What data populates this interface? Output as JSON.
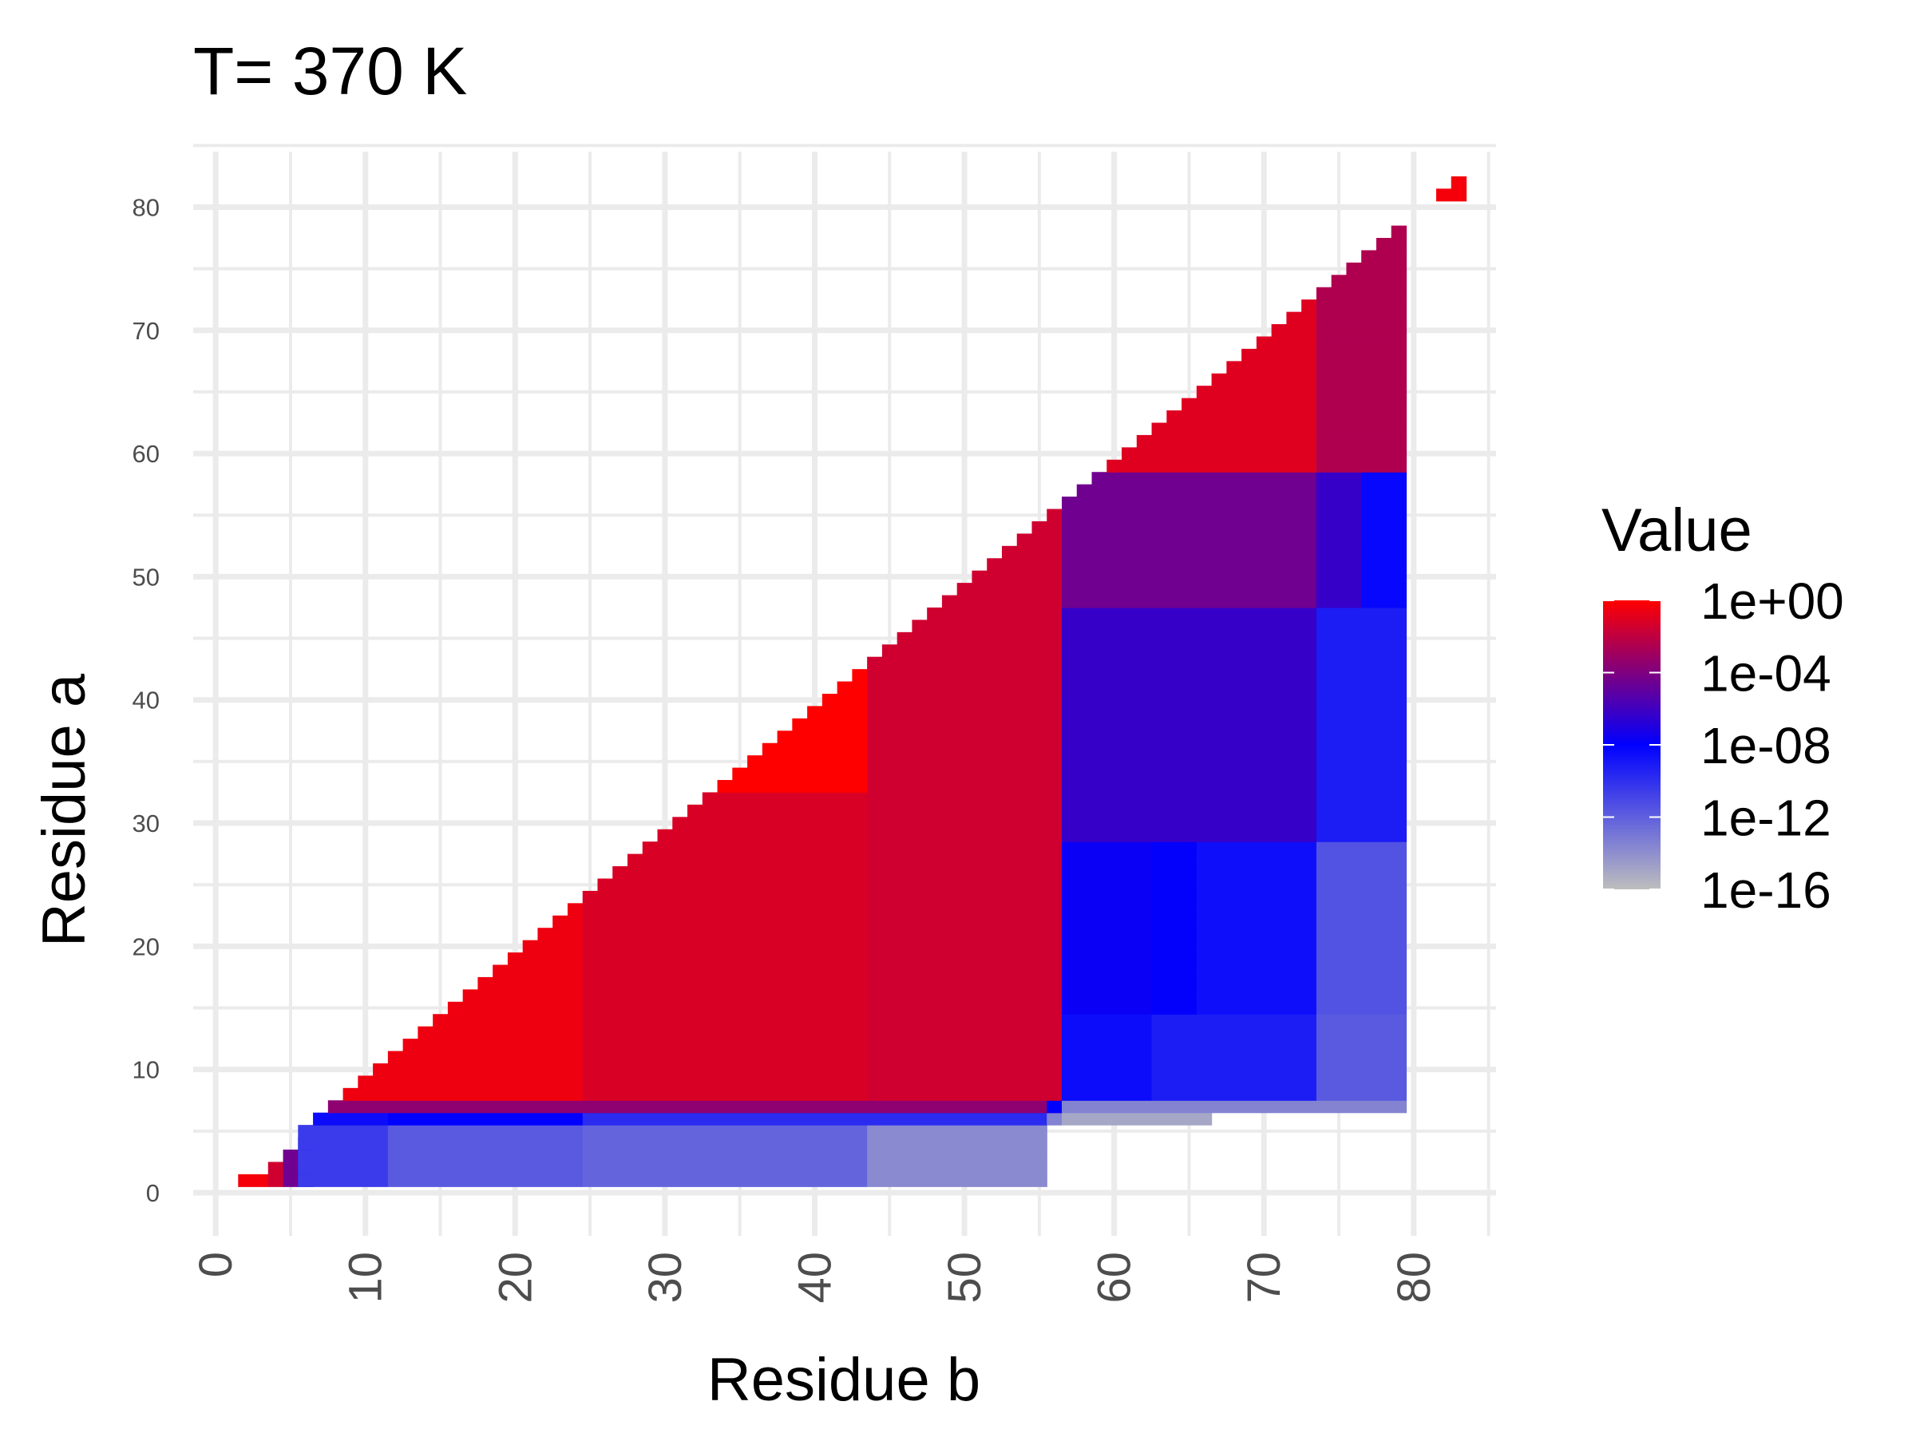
{
  "chart_data": {
    "type": "heatmap",
    "title": "T= 370 K",
    "xlabel": "Residue b",
    "ylabel": "Residue a",
    "xlim": [
      -1.5,
      85.5
    ],
    "ylim": [
      -3.5,
      84.5
    ],
    "x_ticks": [
      "0",
      "10",
      "20",
      "30",
      "40",
      "50",
      "60",
      "70",
      "80"
    ],
    "y_ticks": [
      "0",
      "10",
      "20",
      "30",
      "40",
      "50",
      "60",
      "70",
      "80"
    ],
    "grid": true,
    "legend": {
      "title": "Value",
      "position": "right",
      "scale": "log10",
      "labels": [
        "1e+00",
        "1e-04",
        "1e-08",
        "1e-12",
        "1e-16"
      ],
      "stops": [
        {
          "value": 0,
          "color": "#ff0000"
        },
        {
          "value": -8,
          "color": "#0000ff"
        },
        {
          "value": -16,
          "color": "#bebebe"
        }
      ]
    },
    "regions": [
      {
        "x": [
          2,
          3
        ],
        "y": [
          1,
          1
        ],
        "log10": -0.3
      },
      {
        "x": [
          4,
          4
        ],
        "y": [
          1,
          2
        ],
        "log10": -1.5
      },
      {
        "x": [
          5,
          5
        ],
        "y": [
          1,
          3
        ],
        "log10": -4.5
      },
      {
        "x": [
          6,
          6
        ],
        "y": [
          1,
          4
        ],
        "log10": -8
      },
      {
        "x": [
          6,
          11
        ],
        "y": [
          1,
          5
        ],
        "log10": -10.5
      },
      {
        "x": [
          12,
          24
        ],
        "y": [
          1,
          5
        ],
        "log10": -11.8
      },
      {
        "x": [
          25,
          43
        ],
        "y": [
          1,
          5
        ],
        "log10": -12.2
      },
      {
        "x": [
          44,
          55
        ],
        "y": [
          1,
          5
        ],
        "log10": -13.8
      },
      {
        "x": [
          7,
          11
        ],
        "y": [
          6,
          6
        ],
        "log10": -8.5
      },
      {
        "x": [
          12,
          24
        ],
        "y": [
          6,
          6
        ],
        "log10": -8
      },
      {
        "x": [
          25,
          55
        ],
        "y": [
          6,
          6
        ],
        "log10": -9.8
      },
      {
        "x": [
          56,
          56
        ],
        "y": [
          6,
          6
        ],
        "log10": -13.5
      },
      {
        "x": [
          57,
          66
        ],
        "y": [
          6,
          6
        ],
        "log10": -15
      },
      {
        "x": [
          8,
          56
        ],
        "y": [
          7,
          7
        ],
        "log10": -3.5
      },
      {
        "x": [
          56,
          56
        ],
        "y": [
          7,
          7
        ],
        "log10": -8
      },
      {
        "x": [
          57,
          79
        ],
        "y": [
          7,
          7
        ],
        "log10": -13.5
      },
      {
        "x": [
          9,
          24
        ],
        "y": [
          8,
          32
        ],
        "log10": -0.5
      },
      {
        "x": [
          25,
          43
        ],
        "y": [
          8,
          32
        ],
        "log10": -1.2
      },
      {
        "x": [
          33,
          43
        ],
        "y": [
          33,
          43
        ],
        "log10": 0
      },
      {
        "x": [
          44,
          56
        ],
        "y": [
          8,
          56
        ],
        "log10": -1.5
      },
      {
        "x": [
          57,
          62
        ],
        "y": [
          8,
          14
        ],
        "log10": -8.5
      },
      {
        "x": [
          63,
          73
        ],
        "y": [
          8,
          14
        ],
        "log10": -9.2
      },
      {
        "x": [
          74,
          79
        ],
        "y": [
          8,
          14
        ],
        "log10": -11.8
      },
      {
        "x": [
          57,
          62
        ],
        "y": [
          15,
          28
        ],
        "log10": -7.7
      },
      {
        "x": [
          63,
          65
        ],
        "y": [
          15,
          28
        ],
        "log10": -7.9
      },
      {
        "x": [
          66,
          73
        ],
        "y": [
          15,
          28
        ],
        "log10": -8.6
      },
      {
        "x": [
          74,
          79
        ],
        "y": [
          15,
          28
        ],
        "log10": -11.5
      },
      {
        "x": [
          57,
          73
        ],
        "y": [
          29,
          47
        ],
        "log10": -6.3
      },
      {
        "x": [
          74,
          79
        ],
        "y": [
          29,
          47
        ],
        "log10": -9.2
      },
      {
        "x": [
          57,
          73
        ],
        "y": [
          48,
          58
        ],
        "log10": -4.5
      },
      {
        "x": [
          74,
          76
        ],
        "y": [
          48,
          58
        ],
        "log10": -6.3
      },
      {
        "x": [
          77,
          79
        ],
        "y": [
          48,
          58
        ],
        "log10": -8.3
      },
      {
        "x": [
          57,
          73
        ],
        "y": [
          59,
          78
        ],
        "log10": -1
      },
      {
        "x": [
          74,
          79
        ],
        "y": [
          59,
          78
        ],
        "log10": -2.5
      },
      {
        "x": [
          82,
          83
        ],
        "y": [
          81,
          81
        ],
        "log10": -0.3
      },
      {
        "x": [
          83,
          83
        ],
        "y": [
          82,
          82
        ],
        "log10": -0.3
      }
    ]
  }
}
